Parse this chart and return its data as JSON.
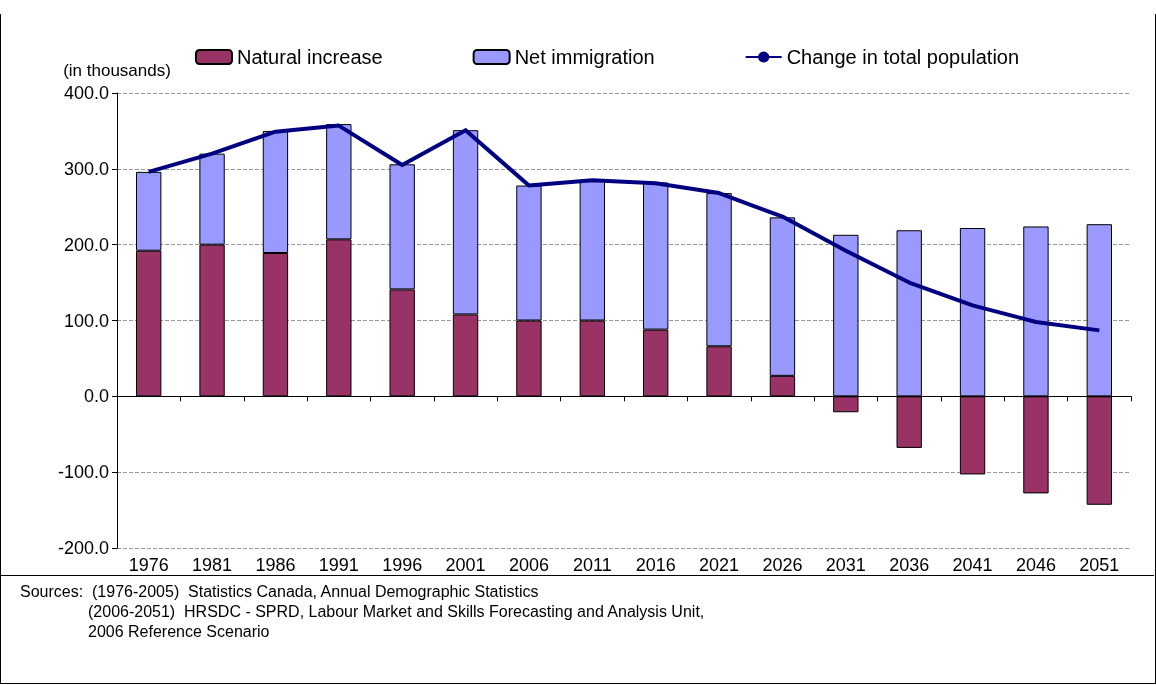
{
  "chart_data": {
    "type": "bar",
    "ylabel": "(in thousands)",
    "stacked": true,
    "categories": [
      "1976",
      "1981",
      "1986",
      "1991",
      "1996",
      "2001",
      "2006",
      "2011",
      "2016",
      "2021",
      "2026",
      "2031",
      "2036",
      "2041",
      "2046",
      "2051"
    ],
    "series": [
      {
        "name": "Natural increase",
        "color": "#993366",
        "values": [
          192,
          200,
          189,
          207,
          141,
          108,
          100,
          100,
          88,
          66,
          27,
          -21,
          -68,
          -103,
          -128,
          -143
        ]
      },
      {
        "name": "Net immigration",
        "color": "#9999ff",
        "values": [
          104,
          120,
          161,
          152,
          165,
          243,
          178,
          185,
          194,
          202,
          209,
          213,
          219,
          222,
          224,
          227
        ]
      },
      {
        "name": "Change in total population",
        "type": "line",
        "color": "#000080",
        "marker": "none",
        "values": [
          296,
          320,
          349,
          357,
          305,
          351,
          278,
          285,
          281,
          268,
          237,
          192,
          150,
          120,
          98,
          87
        ]
      }
    ],
    "ylim": [
      -200,
      400
    ],
    "yticks": [
      {
        "value": -200,
        "label": "-200.0"
      },
      {
        "value": -100,
        "label": "-100.0"
      },
      {
        "value": 0,
        "label": "0.0"
      },
      {
        "value": 100,
        "label": "100.0"
      },
      {
        "value": 200,
        "label": "200.0"
      },
      {
        "value": 300,
        "label": "300.0"
      },
      {
        "value": 400,
        "label": "400.0"
      }
    ],
    "grid": "y",
    "legend": "top",
    "annotations": [
      "Sources:  (1976-2005)  Statistics Canada, Annual Demographic Statistics",
      "(2006-2051)  HRSDC - SPRD, Labour Market and Skills Forecasting and Analysis Unit,",
      "2006 Reference Scenario"
    ]
  }
}
